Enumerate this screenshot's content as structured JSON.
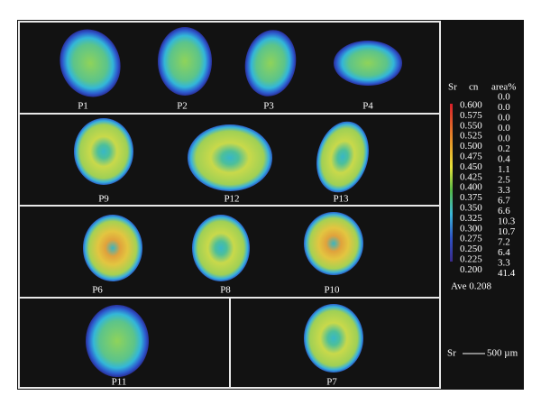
{
  "panels": [
    {
      "label": "P1"
    },
    {
      "label": "P2"
    },
    {
      "label": "P3"
    },
    {
      "label": "P4"
    },
    {
      "label": "P9"
    },
    {
      "label": "P12"
    },
    {
      "label": "P13"
    },
    {
      "label": "P6"
    },
    {
      "label": "P8"
    },
    {
      "label": "P10"
    },
    {
      "label": "P11"
    },
    {
      "label": "P7"
    }
  ],
  "legend": {
    "element": "Sr",
    "cn_header": "cn",
    "area_header": "area%",
    "cn_values": [
      "0.600",
      "0.575",
      "0.550",
      "0.525",
      "0.500",
      "0.475",
      "0.450",
      "0.425",
      "0.400",
      "0.375",
      "0.350",
      "0.325",
      "0.300",
      "0.275",
      "0.250",
      "0.225",
      "0.200"
    ],
    "area_values": [
      "0.0",
      "0.0",
      "0.0",
      "0.0",
      "0.0",
      "0.2",
      "0.4",
      "1.1",
      "2.5",
      "3.3",
      "6.7",
      "6.6",
      "10.3",
      "10.7",
      "7.2",
      "6.4",
      "3.3",
      "41.4"
    ],
    "average": "Ave 0.208"
  },
  "scale_bar": {
    "element": "Sr",
    "length": "500 µm"
  }
}
